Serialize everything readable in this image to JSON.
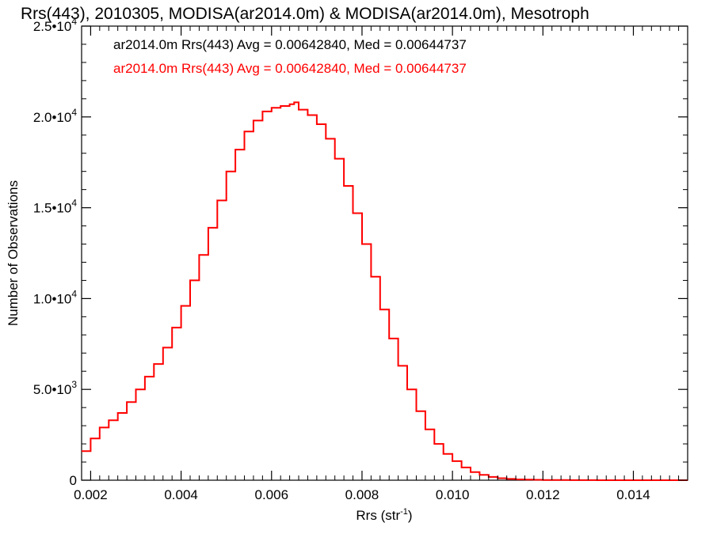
{
  "chart_data": {
    "type": "line",
    "title": "Rrs(443), 2010305, MODISA(ar2014.0m) & MODISA(ar2014.0m), Mesotroph",
    "xlabel": "Rrs (str",
    "xlabel_sup": "-1",
    "xlabel_end": ")",
    "ylabel": "Number of Observations",
    "xlim": [
      0.0018,
      0.0152
    ],
    "ylim": [
      0,
      25000
    ],
    "x_ticks": [
      {
        "value": 0.002,
        "label": "0.002"
      },
      {
        "value": 0.004,
        "label": "0.004"
      },
      {
        "value": 0.006,
        "label": "0.006"
      },
      {
        "value": 0.008,
        "label": "0.008"
      },
      {
        "value": 0.01,
        "label": "0.010"
      },
      {
        "value": 0.012,
        "label": "0.012"
      },
      {
        "value": 0.014,
        "label": "0.014"
      }
    ],
    "y_ticks": [
      {
        "value": 0,
        "label": "0",
        "sup": ""
      },
      {
        "value": 5000,
        "label": "5.0•10",
        "sup": "3"
      },
      {
        "value": 10000,
        "label": "1.0•10",
        "sup": "4"
      },
      {
        "value": 15000,
        "label": "1.5•10",
        "sup": "4"
      },
      {
        "value": 20000,
        "label": "2.0•10",
        "sup": "4"
      },
      {
        "value": 25000,
        "label": "2.5•10",
        "sup": "4"
      }
    ],
    "grid": false,
    "annotations": [
      {
        "text": "ar2014.0m Rrs(443) Avg = 0.00642840, Med = 0.00644737",
        "color": "#000000"
      },
      {
        "text": "ar2014.0m Rrs(443) Avg = 0.00642840, Med = 0.00644737",
        "color": "#ff0000"
      }
    ],
    "series": [
      {
        "color": "#ff0000",
        "style": "histogram-step",
        "x": [
          0.0018,
          0.002,
          0.0022,
          0.0024,
          0.0026,
          0.0028,
          0.003,
          0.0032,
          0.0034,
          0.0036,
          0.0038,
          0.004,
          0.0042,
          0.0044,
          0.0046,
          0.0048,
          0.005,
          0.0052,
          0.0054,
          0.0056,
          0.0058,
          0.006,
          0.0062,
          0.0064,
          0.0065,
          0.0066,
          0.0068,
          0.007,
          0.0072,
          0.0074,
          0.0076,
          0.0078,
          0.008,
          0.0082,
          0.0084,
          0.0086,
          0.0088,
          0.009,
          0.0092,
          0.0094,
          0.0096,
          0.0098,
          0.01,
          0.0102,
          0.0104,
          0.0106,
          0.0108,
          0.011,
          0.0112,
          0.0114,
          0.0116,
          0.0118,
          0.012,
          0.0122,
          0.0124,
          0.0126,
          0.0128,
          0.013,
          0.0132,
          0.0134,
          0.0136,
          0.0138,
          0.014,
          0.0142,
          0.0144,
          0.0146,
          0.0148,
          0.015,
          0.0152
        ],
        "y": [
          1600,
          2300,
          2900,
          3300,
          3700,
          4300,
          5000,
          5700,
          6400,
          7300,
          8400,
          9600,
          11000,
          12400,
          13900,
          15400,
          17000,
          18200,
          19200,
          19800,
          20300,
          20500,
          20600,
          20700,
          20800,
          20400,
          20100,
          19600,
          18800,
          17700,
          16200,
          14700,
          13000,
          11200,
          9400,
          7800,
          6300,
          5000,
          3800,
          2800,
          2000,
          1450,
          1050,
          700,
          450,
          290,
          180,
          110,
          70,
          45,
          30,
          20,
          15,
          10,
          8,
          5,
          4,
          3,
          2,
          2,
          1,
          1,
          1,
          0,
          0,
          0,
          0,
          0,
          0
        ]
      }
    ]
  }
}
